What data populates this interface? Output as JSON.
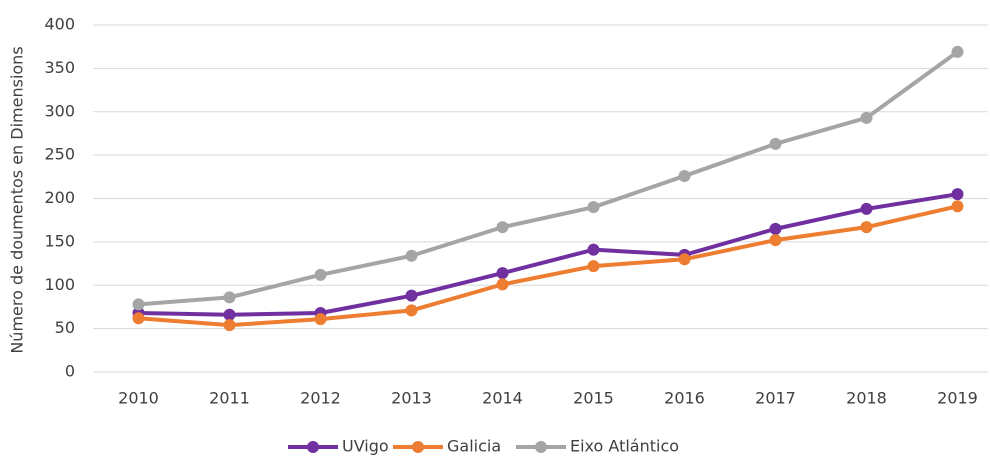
{
  "chart_data": {
    "type": "line",
    "y_label": "Número de doumentos en Dimensions",
    "categories": [
      "2010",
      "2011",
      "2012",
      "2013",
      "2014",
      "2015",
      "2016",
      "2017",
      "2018",
      "2019"
    ],
    "series": [
      {
        "name": "UVigo",
        "color": "#7030a0",
        "values": [
          68,
          66,
          68,
          88,
          114,
          141,
          135,
          165,
          188,
          205
        ]
      },
      {
        "name": "Galicia",
        "color": "#ed7d31",
        "values": [
          62,
          54,
          61,
          71,
          101,
          122,
          130,
          152,
          167,
          191
        ]
      },
      {
        "name": "Eixo Atlántico",
        "color": "#a5a5a5",
        "values": [
          78,
          86,
          112,
          134,
          167,
          190,
          226,
          263,
          293,
          369
        ]
      }
    ],
    "ylim": [
      0,
      400
    ],
    "yticks": [
      0,
      50,
      100,
      150,
      200,
      250,
      300,
      350,
      400
    ],
    "grid": true,
    "legend": "bottom"
  }
}
